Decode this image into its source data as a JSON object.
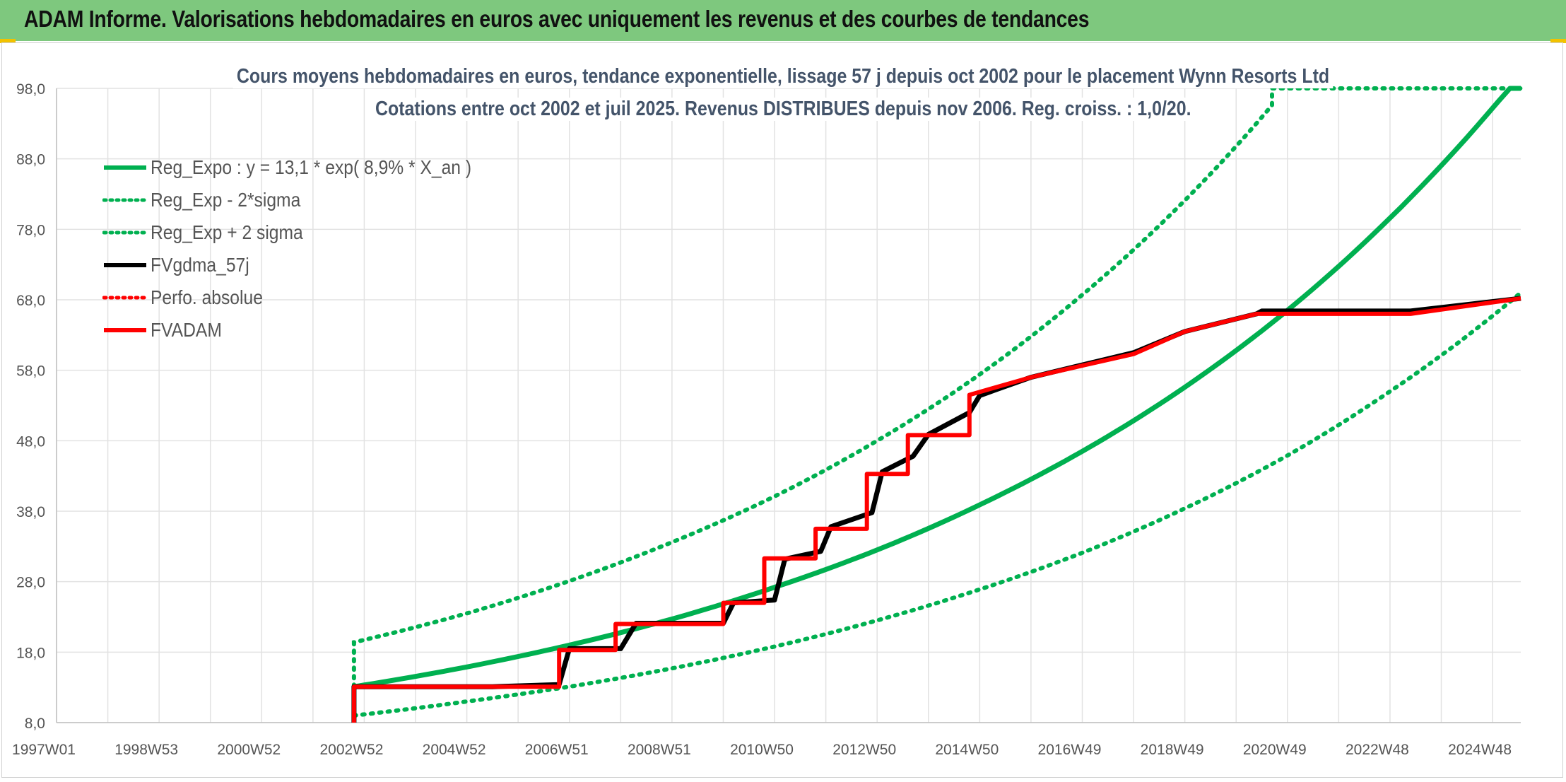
{
  "header": {
    "title": "ADAM Informe. Valorisations hebdomadaires en euros avec uniquement les revenus et des courbes de tendances"
  },
  "chart_data": {
    "type": "line",
    "title": "Cours moyens hebdomadaires en euros, tendance exponentielle, lissage 57 j depuis oct 2002 pour le placement Wynn Resorts Ltd",
    "subtitle": "Cotations entre oct 2002 et juil 2025. Revenus DISTRIBUES depuis nov 2006. Reg. croiss. : 1,0/20.",
    "xlabel": "",
    "ylabel": "",
    "xlim": [
      1997.0,
      2025.55
    ],
    "ylim": [
      8.0,
      98.0
    ],
    "y_ticks": [
      "8,0",
      "18,0",
      "28,0",
      "38,0",
      "48,0",
      "58,0",
      "68,0",
      "78,0",
      "88,0",
      "98,0"
    ],
    "x_ticks": [
      {
        "label": "1997W01",
        "x": 1997.0
      },
      {
        "label": "1998W53",
        "x": 1999.0
      },
      {
        "label": "2000W52",
        "x": 2001.0
      },
      {
        "label": "2002W52",
        "x": 2003.0
      },
      {
        "label": "2004W52",
        "x": 2005.0
      },
      {
        "label": "2006W51",
        "x": 2007.0
      },
      {
        "label": "2008W51",
        "x": 2009.0
      },
      {
        "label": "2010W50",
        "x": 2011.0
      },
      {
        "label": "2012W50",
        "x": 2013.0
      },
      {
        "label": "2014W50",
        "x": 2015.0
      },
      {
        "label": "2016W49",
        "x": 2017.0
      },
      {
        "label": "2018W49",
        "x": 2019.0
      },
      {
        "label": "2020W49",
        "x": 2021.0
      },
      {
        "label": "2022W48",
        "x": 2023.0
      },
      {
        "label": "2024W48",
        "x": 2025.0
      }
    ],
    "grid": true,
    "legend_position": "top-left",
    "series": [
      {
        "name": "Reg_Expo : y = 13,1 * exp( 8,9% *  X_an )",
        "color": "#00b050",
        "style": "solid",
        "x": [
          2002.8,
          2005,
          2007,
          2009,
          2011,
          2013,
          2015,
          2017,
          2019,
          2021,
          2023,
          2025.55
        ],
        "y": [
          13.1,
          15.9,
          19.0,
          22.7,
          27.2,
          32.5,
          38.9,
          46.5,
          55.6,
          66.5,
          79.6,
          100.0
        ]
      },
      {
        "name": "Reg_Exp - 2*sigma",
        "color": "#00b050",
        "style": "dotted",
        "x": [
          2002.8,
          2005,
          2007,
          2009,
          2011,
          2013,
          2015,
          2017,
          2019,
          2021,
          2023,
          2025.55
        ],
        "y": [
          9.0,
          11.0,
          13.1,
          15.7,
          18.8,
          22.5,
          26.9,
          32.1,
          38.4,
          45.9,
          55.0,
          69.0
        ]
      },
      {
        "name": "Reg_Exp + 2 sigma",
        "color": "#00b050",
        "style": "dotted",
        "x": [
          2002.8,
          2002.8,
          2005,
          2007,
          2009,
          2011,
          2013,
          2015,
          2017,
          2019,
          2020.7,
          2020.7,
          2025.55
        ],
        "y": [
          13.1,
          19.4,
          23.5,
          28.1,
          33.6,
          40.1,
          48.0,
          57.4,
          68.7,
          82.1,
          95.6,
          100.0,
          100.0
        ]
      },
      {
        "name": "FVgdma_57j",
        "color": "#000000",
        "style": "solid",
        "x": [
          2002.8,
          2002.8,
          2005.5,
          2006.8,
          2007.0,
          2008.0,
          2008.3,
          2010.0,
          2010.2,
          2011.0,
          2011.2,
          2011.9,
          2012.1,
          2012.9,
          2013.1,
          2013.7,
          2014.0,
          2014.8,
          2015.0,
          2015.3,
          2016.0,
          2018.0,
          2019.0,
          2020.4,
          2020.5,
          2023.4,
          2025.55
        ],
        "y": [
          8.0,
          13.1,
          13.1,
          13.4,
          18.5,
          18.5,
          22.1,
          22.1,
          25.0,
          25.4,
          31.2,
          32.3,
          35.8,
          37.8,
          43.6,
          45.8,
          48.9,
          52.0,
          54.4,
          55.2,
          57.0,
          60.5,
          63.5,
          66.0,
          66.4,
          66.4,
          68.2
        ]
      },
      {
        "name": "Perfo. absolue",
        "color": "#ff0000",
        "style": "dotted",
        "x": [
          2002.8,
          2002.8,
          2006.8,
          2006.8,
          2007.9,
          2007.9,
          2010.0,
          2010.0,
          2010.8,
          2010.8,
          2011.8,
          2011.8,
          2012.8,
          2012.8,
          2013.6,
          2013.6,
          2014.8,
          2014.8,
          2016.0,
          2018.0,
          2019.0,
          2020.4,
          2023.4,
          2025.55
        ],
        "y": [
          8.0,
          13.1,
          13.1,
          18.3,
          18.3,
          22.0,
          22.0,
          25.0,
          25.0,
          31.3,
          31.3,
          35.5,
          35.5,
          43.3,
          43.3,
          48.8,
          48.8,
          54.5,
          57.0,
          60.3,
          63.5,
          66.0,
          66.0,
          68.2
        ]
      },
      {
        "name": "FVADAM",
        "color": "#ff0000",
        "style": "solid",
        "x": [
          2002.8,
          2002.8,
          2006.8,
          2006.8,
          2007.9,
          2007.9,
          2010.0,
          2010.0,
          2010.8,
          2010.8,
          2011.8,
          2011.8,
          2012.8,
          2012.8,
          2013.6,
          2013.6,
          2014.8,
          2014.8,
          2016.0,
          2018.0,
          2019.0,
          2020.4,
          2023.4,
          2025.55
        ],
        "y": [
          8.0,
          13.1,
          13.1,
          18.3,
          18.3,
          22.0,
          22.0,
          25.0,
          25.0,
          31.3,
          31.3,
          35.5,
          35.5,
          43.3,
          43.3,
          48.8,
          48.8,
          54.5,
          57.0,
          60.3,
          63.5,
          66.0,
          66.0,
          68.2
        ]
      }
    ]
  }
}
